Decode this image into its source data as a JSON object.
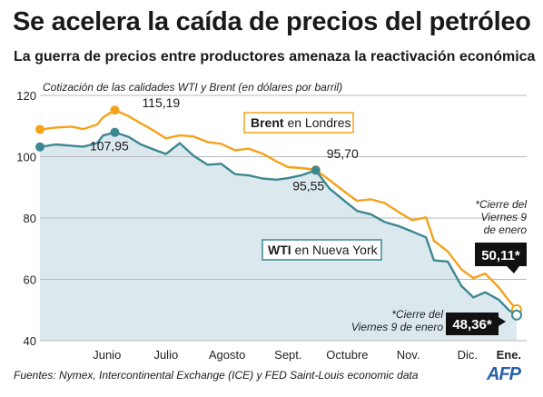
{
  "title": "Se acelera la caída de precios del petróleo",
  "subtitle": "La guerra de precios entre productores amenaza la reactivación económica",
  "source": "Fuentes: Nymex, Intercontinental Exchange (ICE) y FED Saint-Louis economic data",
  "logo": "AFP",
  "colors": {
    "brent": "#f5a21b",
    "wti": "#3d8791",
    "area": "#dbe9ef",
    "grid": "#b9b9b9"
  },
  "chart_data": {
    "type": "line",
    "title": "Se acelera la caída de precios del petróleo",
    "subtitle": "Cotización de las calidades WTI y Brent (en dólares por barril)",
    "x_range": [
      "2014-05-12",
      "2015-01-09"
    ],
    "ylim": [
      40,
      120
    ],
    "y_ticks": [
      40,
      60,
      80,
      100,
      120
    ],
    "grid": "horizontal",
    "months": [
      {
        "label": "Junio",
        "date": "2014-06-15"
      },
      {
        "label": "Julio",
        "date": "2014-07-15"
      },
      {
        "label": "Agosto",
        "date": "2014-08-15"
      },
      {
        "label": "Sept.",
        "date": "2014-09-15"
      },
      {
        "label": "Octubre",
        "date": "2014-10-15"
      },
      {
        "label": "Nov.",
        "date": "2014-11-15"
      },
      {
        "label": "Dic.",
        "date": "2014-12-15"
      },
      {
        "label": "Ene.",
        "date": "2015-01-05"
      }
    ],
    "series": [
      {
        "name": "Brent",
        "legend_bold": "Brent",
        "legend_rest": " en Londres",
        "points": [
          [
            "2014-05-12",
            108.9
          ],
          [
            "2014-05-20",
            109.5
          ],
          [
            "2014-05-28",
            109.8
          ],
          [
            "2014-06-03",
            109.0
          ],
          [
            "2014-06-10",
            110.5
          ],
          [
            "2014-06-13",
            112.8
          ],
          [
            "2014-06-19",
            115.19
          ],
          [
            "2014-06-26",
            113.2
          ],
          [
            "2014-07-02",
            111.0
          ],
          [
            "2014-07-09",
            108.4
          ],
          [
            "2014-07-15",
            106.0
          ],
          [
            "2014-07-22",
            107.0
          ],
          [
            "2014-07-29",
            106.6
          ],
          [
            "2014-08-05",
            104.8
          ],
          [
            "2014-08-12",
            104.2
          ],
          [
            "2014-08-19",
            102.1
          ],
          [
            "2014-08-26",
            102.6
          ],
          [
            "2014-09-02",
            101.0
          ],
          [
            "2014-09-09",
            98.5
          ],
          [
            "2014-09-15",
            96.6
          ],
          [
            "2014-09-22",
            96.3
          ],
          [
            "2014-09-29",
            95.7
          ],
          [
            "2014-10-06",
            92.4
          ],
          [
            "2014-10-13",
            88.9
          ],
          [
            "2014-10-20",
            85.6
          ],
          [
            "2014-10-27",
            86.1
          ],
          [
            "2014-11-03",
            84.9
          ],
          [
            "2014-11-10",
            82.0
          ],
          [
            "2014-11-17",
            79.3
          ],
          [
            "2014-11-24",
            80.2
          ],
          [
            "2014-11-28",
            72.6
          ],
          [
            "2014-12-05",
            69.1
          ],
          [
            "2014-12-12",
            63.2
          ],
          [
            "2014-12-18",
            60.4
          ],
          [
            "2014-12-24",
            61.9
          ],
          [
            "2014-12-31",
            57.3
          ],
          [
            "2015-01-05",
            53.1
          ],
          [
            "2015-01-09",
            50.11
          ]
        ]
      },
      {
        "name": "WTI",
        "legend_bold": "WTI",
        "legend_rest": " en Nueva York",
        "points": [
          [
            "2014-05-12",
            103.2
          ],
          [
            "2014-05-20",
            104.0
          ],
          [
            "2014-05-28",
            103.6
          ],
          [
            "2014-06-03",
            103.3
          ],
          [
            "2014-06-10",
            104.4
          ],
          [
            "2014-06-13",
            106.9
          ],
          [
            "2014-06-19",
            107.95
          ],
          [
            "2014-06-26",
            106.5
          ],
          [
            "2014-07-02",
            104.1
          ],
          [
            "2014-07-09",
            102.3
          ],
          [
            "2014-07-15",
            100.9
          ],
          [
            "2014-07-22",
            104.4
          ],
          [
            "2014-07-29",
            100.3
          ],
          [
            "2014-08-05",
            97.4
          ],
          [
            "2014-08-12",
            97.7
          ],
          [
            "2014-08-19",
            94.3
          ],
          [
            "2014-08-26",
            93.9
          ],
          [
            "2014-09-02",
            92.9
          ],
          [
            "2014-09-09",
            92.5
          ],
          [
            "2014-09-15",
            93.0
          ],
          [
            "2014-09-22",
            94.0
          ],
          [
            "2014-09-29",
            95.55
          ],
          [
            "2014-10-06",
            89.6
          ],
          [
            "2014-10-13",
            85.9
          ],
          [
            "2014-10-20",
            82.3
          ],
          [
            "2014-10-27",
            81.2
          ],
          [
            "2014-11-03",
            78.7
          ],
          [
            "2014-11-10",
            77.4
          ],
          [
            "2014-11-17",
            75.6
          ],
          [
            "2014-11-24",
            73.7
          ],
          [
            "2014-11-28",
            66.2
          ],
          [
            "2014-12-05",
            65.8
          ],
          [
            "2014-12-12",
            57.8
          ],
          [
            "2014-12-18",
            54.1
          ],
          [
            "2014-12-24",
            55.8
          ],
          [
            "2014-12-31",
            53.3
          ],
          [
            "2015-01-05",
            50.0
          ],
          [
            "2015-01-09",
            48.36
          ]
        ]
      }
    ],
    "annotations": [
      {
        "series": "Brent",
        "date": "2014-06-19",
        "value": 115.19,
        "label": "115,19"
      },
      {
        "series": "WTI",
        "date": "2014-06-19",
        "value": 107.95,
        "label": "107,95"
      },
      {
        "series": "Brent",
        "date": "2014-09-29",
        "value": 95.7,
        "label": "95,70"
      },
      {
        "series": "WTI",
        "date": "2014-09-29",
        "value": 95.55,
        "label": "95,55"
      }
    ],
    "callouts": {
      "brent": {
        "note": [
          "*Cierre del",
          "Viernes 9",
          "de enero"
        ],
        "value": "50,11*"
      },
      "wti": {
        "note": [
          "*Cierre del",
          "Viernes 9 de enero"
        ],
        "value": "48,36*"
      }
    }
  }
}
